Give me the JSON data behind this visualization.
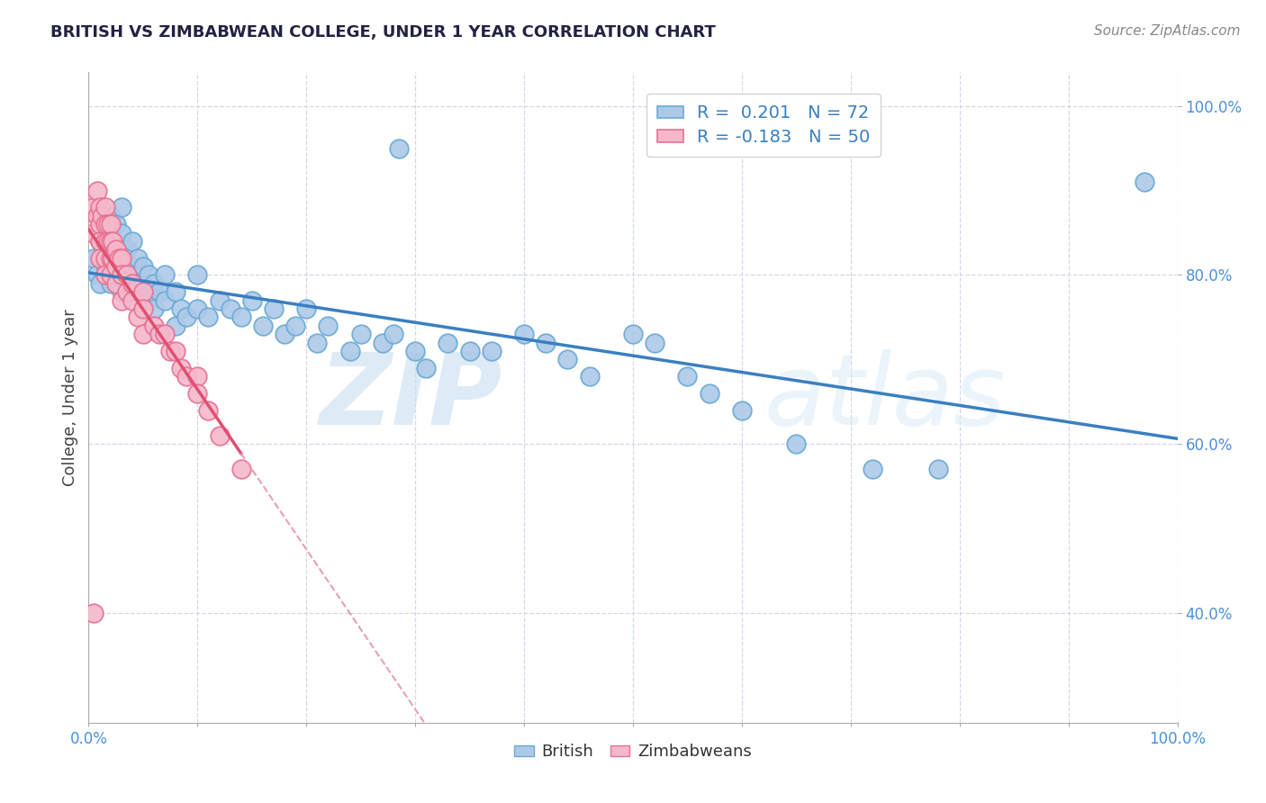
{
  "title": "BRITISH VS ZIMBABWEAN COLLEGE, UNDER 1 YEAR CORRELATION CHART",
  "source_text": "Source: ZipAtlas.com",
  "ylabel": "College, Under 1 year",
  "xlim": [
    0.0,
    1.0
  ],
  "ylim": [
    0.27,
    1.04
  ],
  "xticks": [
    0.0,
    0.1,
    0.2,
    0.3,
    0.4,
    0.5,
    0.6,
    0.7,
    0.8,
    0.9,
    1.0
  ],
  "xticklabels": [
    "0.0%",
    "",
    "",
    "",
    "",
    "",
    "",
    "",
    "",
    "",
    "100.0%"
  ],
  "yticks": [
    0.4,
    0.6,
    0.8,
    1.0
  ],
  "yticklabels": [
    "40.0%",
    "60.0%",
    "80.0%",
    "100.0%"
  ],
  "british_color": "#adc9e8",
  "british_edge_color": "#6aaad4",
  "zimbabwean_color": "#f5b8cb",
  "zimbabwean_edge_color": "#e87090",
  "british_line_color": "#3a7fc1",
  "zimbabwean_line_solid_color": "#e05070",
  "zimbabwean_line_dashed_color": "#e8a0b0",
  "r_british": 0.201,
  "n_british": 72,
  "r_zimbabwean": -0.183,
  "n_zimbabwean": 50,
  "watermark_zip": "ZIP",
  "watermark_atlas": "atlas",
  "grid_color": "#d0d8e8",
  "figsize": [
    14.06,
    8.92
  ],
  "dpi": 100,
  "brit_x": [
    0.005,
    0.008,
    0.01,
    0.01,
    0.015,
    0.015,
    0.02,
    0.02,
    0.02,
    0.025,
    0.025,
    0.03,
    0.03,
    0.03,
    0.03,
    0.035,
    0.035,
    0.04,
    0.04,
    0.04,
    0.045,
    0.045,
    0.05,
    0.05,
    0.055,
    0.055,
    0.06,
    0.06,
    0.065,
    0.07,
    0.07,
    0.08,
    0.08,
    0.085,
    0.09,
    0.1,
    0.1,
    0.11,
    0.12,
    0.13,
    0.14,
    0.15,
    0.16,
    0.17,
    0.18,
    0.19,
    0.2,
    0.21,
    0.22,
    0.24,
    0.25,
    0.27,
    0.28,
    0.3,
    0.31,
    0.33,
    0.35,
    0.37,
    0.4,
    0.42,
    0.44,
    0.46,
    0.5,
    0.52,
    0.55,
    0.57,
    0.6,
    0.65,
    0.72,
    0.78,
    0.97,
    0.285
  ],
  "brit_y": [
    0.82,
    0.8,
    0.84,
    0.79,
    0.85,
    0.81,
    0.87,
    0.83,
    0.79,
    0.86,
    0.82,
    0.88,
    0.85,
    0.82,
    0.78,
    0.83,
    0.8,
    0.84,
    0.81,
    0.78,
    0.82,
    0.79,
    0.81,
    0.78,
    0.8,
    0.77,
    0.79,
    0.76,
    0.78,
    0.8,
    0.77,
    0.78,
    0.74,
    0.76,
    0.75,
    0.8,
    0.76,
    0.75,
    0.77,
    0.76,
    0.75,
    0.77,
    0.74,
    0.76,
    0.73,
    0.74,
    0.76,
    0.72,
    0.74,
    0.71,
    0.73,
    0.72,
    0.73,
    0.71,
    0.69,
    0.72,
    0.71,
    0.71,
    0.73,
    0.72,
    0.7,
    0.68,
    0.73,
    0.72,
    0.68,
    0.66,
    0.64,
    0.6,
    0.57,
    0.57,
    0.91,
    0.95
  ],
  "zim_x": [
    0.005,
    0.005,
    0.008,
    0.008,
    0.01,
    0.01,
    0.01,
    0.01,
    0.012,
    0.015,
    0.015,
    0.015,
    0.015,
    0.015,
    0.018,
    0.018,
    0.02,
    0.02,
    0.02,
    0.02,
    0.022,
    0.022,
    0.025,
    0.025,
    0.025,
    0.028,
    0.03,
    0.03,
    0.03,
    0.035,
    0.035,
    0.04,
    0.04,
    0.045,
    0.05,
    0.05,
    0.05,
    0.06,
    0.065,
    0.07,
    0.075,
    0.08,
    0.085,
    0.09,
    0.1,
    0.1,
    0.11,
    0.12,
    0.14,
    0.005
  ],
  "zim_y": [
    0.88,
    0.85,
    0.9,
    0.87,
    0.88,
    0.86,
    0.84,
    0.82,
    0.87,
    0.88,
    0.86,
    0.84,
    0.82,
    0.8,
    0.86,
    0.84,
    0.86,
    0.84,
    0.82,
    0.8,
    0.84,
    0.82,
    0.83,
    0.81,
    0.79,
    0.82,
    0.82,
    0.8,
    0.77,
    0.8,
    0.78,
    0.79,
    0.77,
    0.75,
    0.78,
    0.76,
    0.73,
    0.74,
    0.73,
    0.73,
    0.71,
    0.71,
    0.69,
    0.68,
    0.68,
    0.66,
    0.64,
    0.61,
    0.57,
    0.4
  ]
}
